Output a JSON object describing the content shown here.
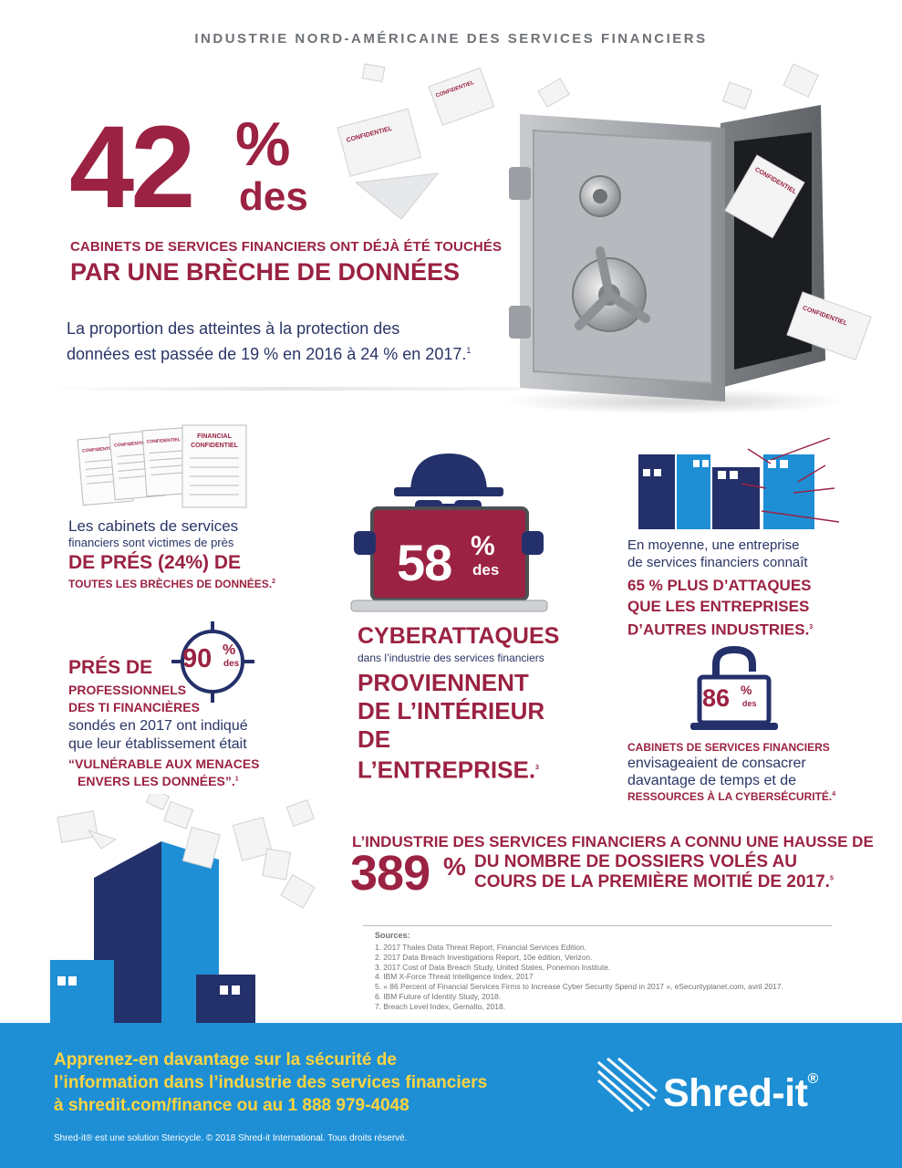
{
  "header": {
    "title": "INDUSTRIE NORD-AMÉRICAINE DES SERVICES FINANCIERS"
  },
  "hero": {
    "number": "42",
    "percent": "%",
    "des": "des",
    "line1": "CABINETS DE SERVICES FINANCIERS ONT DÉJÀ ÉTÉ TOUCHÉS",
    "line2": "PAR UNE BRÈCHE DE DONNÉES",
    "body_line1": "La proportion des atteintes à la protection des",
    "body_line2": "données est passée de 19 % en 2016 à 24 % en 2017.",
    "body_footnote": "1"
  },
  "doc_labels": {
    "confidentiel": "CONFIDENTIEL",
    "financial": "FINANCIAL",
    "confidentiel_caps": "CONFIDENTIEL"
  },
  "left_block1": {
    "line1": "Les cabinets de services",
    "line2": "financiers sont victimes de près",
    "line3": "DE PRÉS (24%) DE",
    "line4": "TOUTES LES BRÈCHES DE DONNÉES.",
    "footnote": "2"
  },
  "left_block2": {
    "pres": "PRÉS DE",
    "badge_number": "90",
    "badge_percent": "%",
    "badge_des": "des",
    "prof1": "PROFESSIONNELS",
    "prof2": "DES TI FINANCIÈRES",
    "sond1": "sondés en 2017 ont indiqué",
    "sond2": "que leur établissement était",
    "vuln1": "“VULNÉRABLE AUX MENACES",
    "vuln2": "ENVERS LES DONNÉES”.",
    "footnote": "1"
  },
  "center_block": {
    "number": "58",
    "percent": "%",
    "des": "des",
    "cyber": "CYBERATTAQUES",
    "dans": "dans l’industrie des services financiers",
    "prov1": "PROVIENNENT",
    "prov2": "DE L’INTÉRIEUR",
    "prov3": "DE L’ENTREPRISE.",
    "footnote": "3"
  },
  "right_block1": {
    "line1": "En moyenne, une entreprise",
    "line2": "de services financiers connaît",
    "bold1": "65 % PLUS D’ATTAQUES",
    "bold2": "QUE LES ENTREPRISES",
    "bold3": "D’AUTRES INDUSTRIES.",
    "footnote": "3"
  },
  "right_block2": {
    "number": "86",
    "percent": "%",
    "des": "des",
    "bold1": "CABINETS DE SERVICES FINANCIERS",
    "line1": "envisageaient de consacrer",
    "line2": "davantage de temps et de",
    "bold2": "RESSOURCES À LA CYBERSÉCURITÉ.",
    "footnote": "4"
  },
  "stat389": {
    "line1": "L’INDUSTRIE DES SERVICES FINANCIERS A CONNU UNE HAUSSE DE",
    "number": "389",
    "percent": "%",
    "line2": "DU NOMBRE DE DOSSIERS VOLÉS AU",
    "line3": "COURS DE LA PREMIÈRE MOITIÉ DE 2017.",
    "footnote": "5"
  },
  "sources": {
    "title": "Sources:",
    "items": [
      "1. 2017 Thales Data Threat Report, Financial Services Edition.",
      "2. 2017 Data Breach Investigations Report, 10e édition, Verizon.",
      "3. 2017 Cost of Data Breach Study, United States, Ponemon Institute.",
      "4. IBM X-Force Threat Intelligence Index, 2017",
      "5. « 86 Percent of Financial Services Firms to Increase Cyber Security Spend in 2017 », eSecurityplanet.com, avril 2017.",
      "6. IBM Future of Identity Study, 2018.",
      "7. Breach Level Index, Gemalto, 2018."
    ]
  },
  "footer": {
    "cta1": "Apprenez-en davantage sur la sécurité de",
    "cta2": "l’information dans l’industrie des services financiers",
    "cta3": "à shredit.com/finance ou au 1 888 979-4048",
    "copyright": "Shred-it® est une solution Stericycle. © 2018 Shred-it International. Tous droits réservé.",
    "brand": "Shred-it",
    "brand_mark": "®"
  },
  "colors": {
    "maroon": "#9b2242",
    "navy": "#24306a",
    "blue": "#1e8fd5",
    "yellow": "#ffd43f",
    "gray": "#6e7277"
  }
}
